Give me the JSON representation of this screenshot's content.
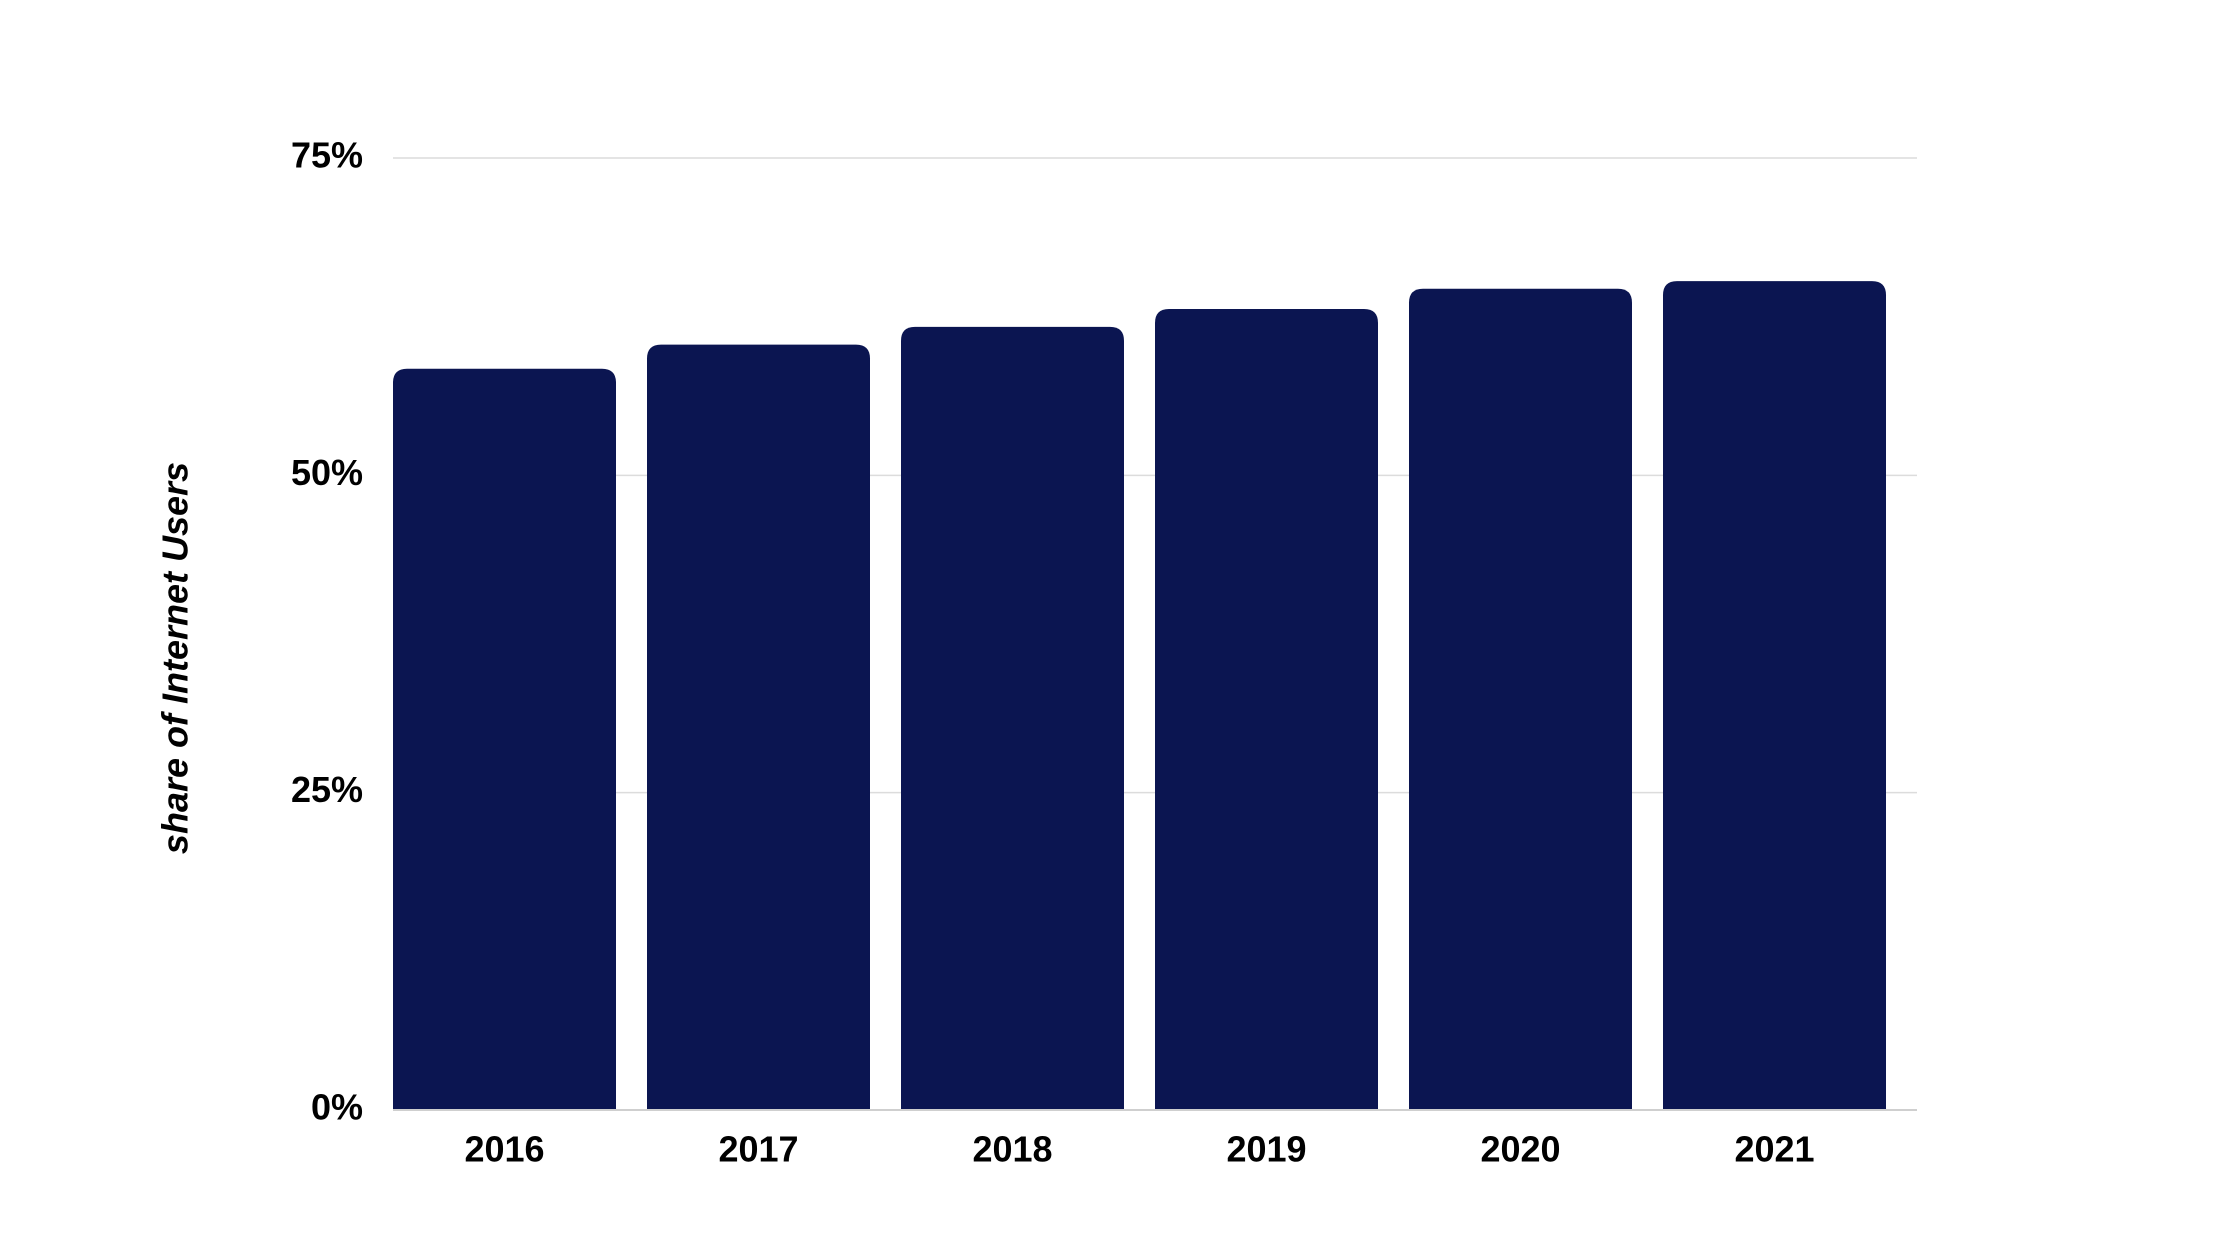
{
  "chart_data": {
    "type": "bar",
    "categories": [
      "2016",
      "2017",
      "2018",
      "2019",
      "2020",
      "2021"
    ],
    "values": [
      58.4,
      60.3,
      61.7,
      63.1,
      64.7,
      65.3
    ],
    "title": "",
    "xlabel": "",
    "ylabel": "share of Internet Users",
    "ylim": [
      0,
      75
    ],
    "yticks": [
      0,
      25,
      50,
      75
    ],
    "ytick_labels": [
      "0%",
      "25%",
      "50%",
      "75%"
    ],
    "grid": true,
    "legend": "none",
    "bar_color": "#0b1551",
    "grid_color": "#dcdcdc",
    "axis_color": "#cfcfcf"
  }
}
